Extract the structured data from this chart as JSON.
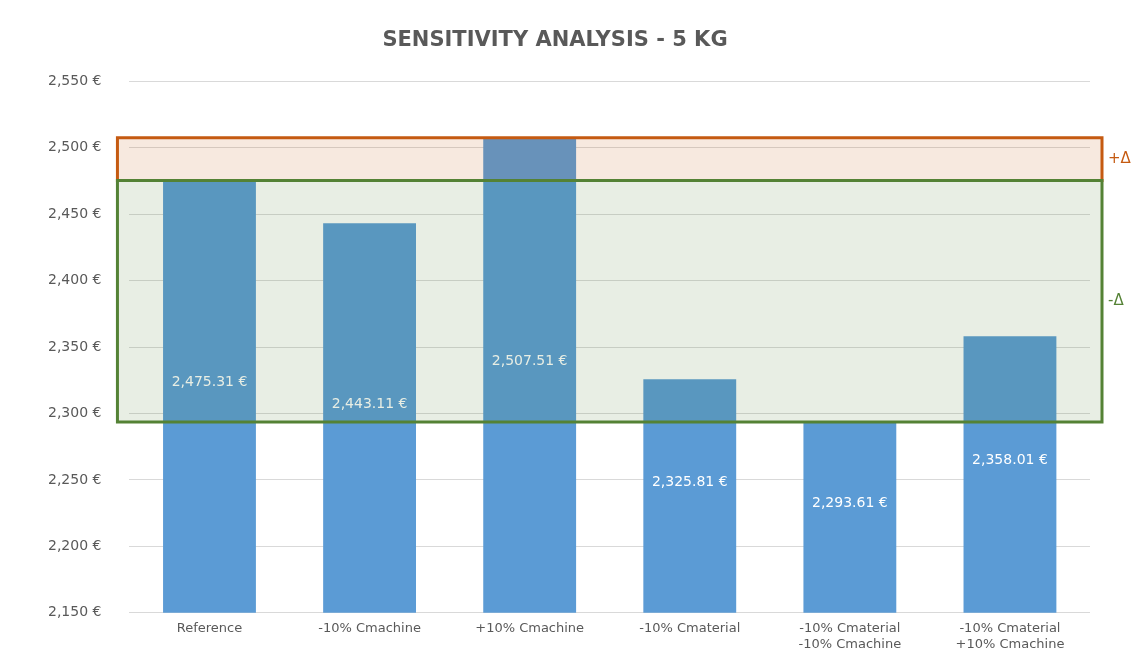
{
  "chart_data": {
    "type": "bar",
    "title": "SENSITIVITY ANALYSIS - 5 KG",
    "categories": [
      "Reference",
      "-10% Cmachine",
      "+10% Cmachine",
      "-10% Cmaterial",
      "-10% Cmaterial\n-10% Cmachine",
      "-10% Cmaterial\n+10% Cmachine"
    ],
    "values": [
      2475.31,
      2443.11,
      2507.51,
      2325.81,
      2293.61,
      2358.01
    ],
    "value_labels": [
      "2,475.31 €",
      "2,443.11 €",
      "2,507.51 €",
      "2,325.81 €",
      "2,293.61 €",
      "2,358.01 €"
    ],
    "color": "#5b9bd5",
    "ylim": [
      2150,
      2550
    ],
    "yticks": [
      {
        "value": 2150,
        "label": "2,150 €"
      },
      {
        "value": 2200,
        "label": "2,200 €"
      },
      {
        "value": 2250,
        "label": "2,250 €"
      },
      {
        "value": 2300,
        "label": "2,300 €"
      },
      {
        "value": 2350,
        "label": "2,350 €"
      },
      {
        "value": 2400,
        "label": "2,400 €"
      },
      {
        "value": 2450,
        "label": "2,450 €"
      },
      {
        "value": 2500,
        "label": "2,500 €"
      },
      {
        "value": 2550,
        "label": "2,550 €"
      }
    ],
    "bands": [
      {
        "axis": "y",
        "from": 2475.31,
        "to": 2507.51,
        "label": "+Δ",
        "color": "#c55a11"
      },
      {
        "axis": "y",
        "from": 2293.61,
        "to": 2475.31,
        "label": "-Δ",
        "color": "#548235"
      }
    ],
    "grid": "y",
    "legend": false
  }
}
